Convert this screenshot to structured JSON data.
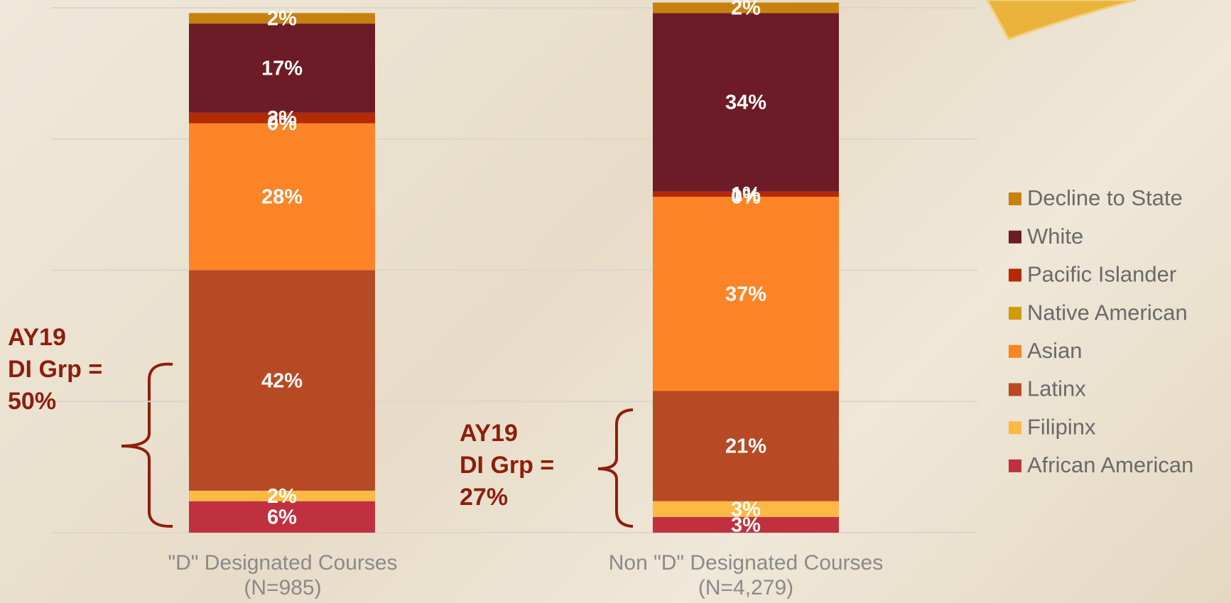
{
  "chart_data": {
    "type": "stacked_bar",
    "categories": [
      "\"D\" Designated Courses\n(N=985)",
      "Non \"D\" Designated Courses\n(N=4,279)"
    ],
    "series": [
      {
        "name": "African American",
        "color": "#c0313f",
        "values": [
          6,
          3
        ],
        "value_labels": [
          "6%",
          "3%"
        ]
      },
      {
        "name": "Filipinx",
        "color": "#fdb944",
        "values": [
          2,
          3
        ],
        "value_labels": [
          "2%",
          "3%"
        ]
      },
      {
        "name": "Latinx",
        "color": "#b74925",
        "values": [
          42,
          21
        ],
        "value_labels": [
          "42%",
          "21%"
        ]
      },
      {
        "name": "Asian",
        "color": "#fd8427",
        "values": [
          28,
          37
        ],
        "value_labels": [
          "28%",
          "37%"
        ]
      },
      {
        "name": "Native American",
        "color": "#d19a0b",
        "values": [
          0,
          0
        ],
        "value_labels": [
          "0%",
          "0%"
        ]
      },
      {
        "name": "Pacific Islander",
        "color": "#b32a05",
        "values": [
          2,
          1
        ],
        "value_labels": [
          "2%",
          "1%"
        ]
      },
      {
        "name": "White",
        "color": "#6d1b26",
        "values": [
          17,
          34
        ],
        "value_labels": [
          "17%",
          "34%"
        ]
      },
      {
        "name": "Decline to State",
        "color": "#c8800f",
        "values": [
          2,
          2
        ],
        "value_labels": [
          "2%",
          "2%"
        ]
      }
    ],
    "ylim": [
      0,
      100
    ],
    "yticks": [
      0,
      25,
      50,
      75,
      100
    ],
    "grid": true,
    "legend": "right",
    "annotations": [
      "AY19\nDI Grp =\n50%",
      "AY19\nDI Grp =\n27%"
    ]
  }
}
